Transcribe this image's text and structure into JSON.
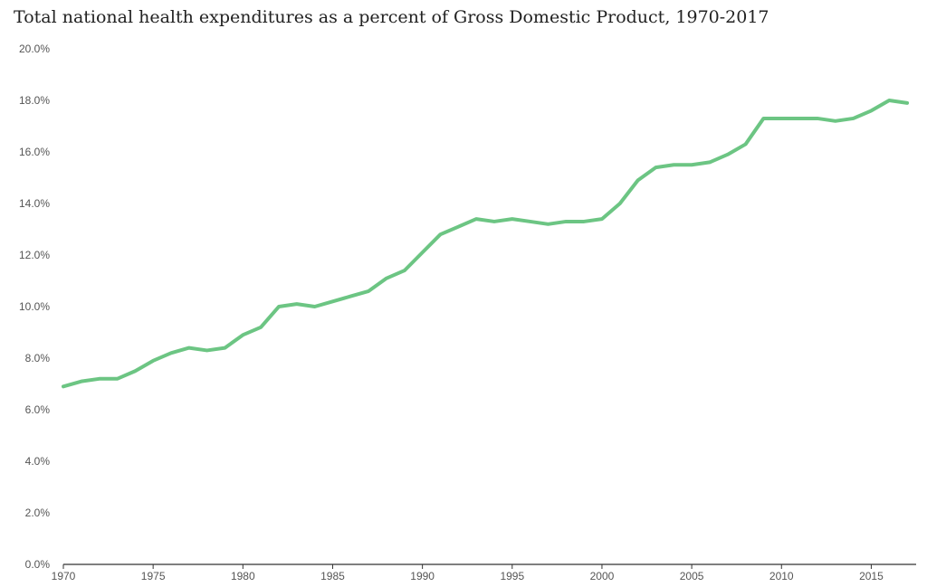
{
  "chart_data": {
    "type": "line",
    "title": "Total national health expenditures as a percent of Gross Domestic Product, 1970-2017",
    "xlabel": "",
    "ylabel": "",
    "xlim": [
      1970,
      2017.5
    ],
    "ylim": [
      0,
      20
    ],
    "grid": false,
    "legend": "none",
    "x_ticks": [
      1970,
      1975,
      1980,
      1985,
      1990,
      1995,
      2000,
      2005,
      2010,
      2015
    ],
    "x_tick_labels": [
      "1970",
      "1975",
      "1980",
      "1985",
      "1990",
      "1995",
      "2000",
      "2005",
      "2010",
      "2015"
    ],
    "y_ticks": [
      0,
      2,
      4,
      6,
      8,
      10,
      12,
      14,
      16,
      18,
      20
    ],
    "y_tick_labels": [
      "0.0%",
      "2.0%",
      "4.0%",
      "6.0%",
      "8.0%",
      "10.0%",
      "12.0%",
      "14.0%",
      "16.0%",
      "18.0%",
      "20.0%"
    ],
    "x": [
      1970,
      1971,
      1972,
      1973,
      1974,
      1975,
      1976,
      1977,
      1978,
      1979,
      1980,
      1981,
      1982,
      1983,
      1984,
      1985,
      1986,
      1987,
      1988,
      1989,
      1990,
      1991,
      1992,
      1993,
      1994,
      1995,
      1996,
      1997,
      1998,
      1999,
      2000,
      2001,
      2002,
      2003,
      2004,
      2005,
      2006,
      2007,
      2008,
      2009,
      2010,
      2011,
      2012,
      2013,
      2014,
      2015,
      2016,
      2017
    ],
    "series": [
      {
        "color": "#6cc583",
        "values": [
          6.9,
          7.1,
          7.2,
          7.2,
          7.5,
          7.9,
          8.2,
          8.4,
          8.3,
          8.4,
          8.9,
          9.2,
          10.0,
          10.1,
          10.0,
          10.2,
          10.4,
          10.6,
          11.1,
          11.4,
          12.1,
          12.8,
          13.1,
          13.4,
          13.3,
          13.4,
          13.3,
          13.2,
          13.3,
          13.3,
          13.4,
          14.0,
          14.9,
          15.4,
          15.5,
          15.5,
          15.6,
          15.9,
          16.3,
          17.3,
          17.3,
          17.3,
          17.3,
          17.2,
          17.3,
          17.6,
          18.0,
          17.9
        ]
      }
    ]
  }
}
